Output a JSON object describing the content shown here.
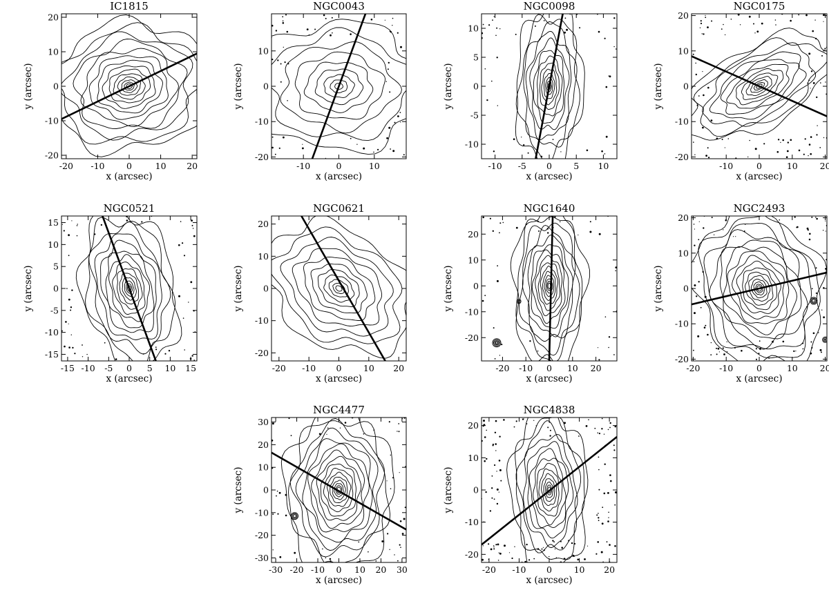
{
  "figure": {
    "x_label": "x (arcsec)",
    "y_label": "y (arcsec)"
  },
  "panels": [
    {
      "id": "ic1815",
      "title": "IC1815",
      "xlim": [
        -21.5,
        21.5
      ],
      "ylim": [
        -21,
        21
      ],
      "xticks": [
        -20,
        -10,
        0,
        10,
        20
      ],
      "yticks": [
        -20,
        -10,
        0,
        10,
        20
      ],
      "pa_line": [
        [
          -21.5,
          -9.5
        ],
        [
          21.5,
          9.5
        ]
      ],
      "isophote_axis_ratio": 0.8,
      "isophote_angle_deg": 10,
      "isophote_count": 14,
      "noise": 0
    },
    {
      "id": "ngc0043",
      "title": "NGC0043",
      "xlim": [
        -19,
        19
      ],
      "ylim": [
        -20.5,
        20.5
      ],
      "xticks": [
        -10,
        0,
        10
      ],
      "yticks": [
        -20,
        -10,
        0,
        10
      ],
      "pa_line": [
        [
          -7.5,
          -20.5
        ],
        [
          7.5,
          20.5
        ]
      ],
      "isophote_axis_ratio": 0.75,
      "isophote_angle_deg": 0,
      "isophote_count": 9,
      "noise": 60
    },
    {
      "id": "ngc0098",
      "title": "NGC0098",
      "xlim": [
        -12.5,
        12.5
      ],
      "ylim": [
        -12.5,
        12.5
      ],
      "xticks": [
        -10,
        -5,
        0,
        5,
        10
      ],
      "yticks": [
        -10,
        -5,
        0,
        5,
        10
      ],
      "pa_line": [
        [
          -2.5,
          -12.5
        ],
        [
          2.5,
          12.5
        ]
      ],
      "isophote_axis_ratio": 0.42,
      "isophote_angle_deg": 88,
      "isophote_count": 13,
      "noise": 45
    },
    {
      "id": "ngc0175",
      "title": "NGC0175",
      "xlim": [
        -20.5,
        20.5
      ],
      "ylim": [
        -20.5,
        20.5
      ],
      "xticks": [
        -10,
        0,
        10,
        20
      ],
      "yticks": [
        -20,
        -10,
        0,
        10,
        20
      ],
      "pa_line": [
        [
          -20.5,
          8.5
        ],
        [
          20.5,
          -8.5
        ]
      ],
      "isophote_axis_ratio": 0.5,
      "isophote_angle_deg": 30,
      "isophote_count": 12,
      "noise": 90
    },
    {
      "id": "ngc0521",
      "title": "NGC0521",
      "xlim": [
        -16.5,
        16.5
      ],
      "ylim": [
        -16.5,
        16.5
      ],
      "xticks": [
        -15,
        -10,
        -5,
        0,
        5,
        10,
        15
      ],
      "yticks": [
        -15,
        -10,
        -5,
        0,
        5,
        10,
        15
      ],
      "pa_line": [
        [
          -6.5,
          16.5
        ],
        [
          6.5,
          -16.5
        ]
      ],
      "isophote_axis_ratio": 0.58,
      "isophote_angle_deg": 102,
      "isophote_count": 14,
      "noise": 55
    },
    {
      "id": "ngc0621",
      "title": "NGC0621",
      "xlim": [
        -22.5,
        22.5
      ],
      "ylim": [
        -22.5,
        22.5
      ],
      "xticks": [
        -20,
        -10,
        0,
        10,
        20
      ],
      "yticks": [
        -20,
        -10,
        0,
        10,
        20
      ],
      "pa_line": [
        [
          -12.5,
          22.5
        ],
        [
          15.5,
          -22.5
        ]
      ],
      "isophote_axis_ratio": 0.72,
      "isophote_angle_deg": 145,
      "isophote_count": 11,
      "noise": 0
    },
    {
      "id": "ngc1640",
      "title": "NGC1640",
      "xlim": [
        -29,
        29
      ],
      "ylim": [
        -29,
        27
      ],
      "xticks": [
        -20,
        -10,
        0,
        10,
        20
      ],
      "yticks": [
        -20,
        -10,
        0,
        10,
        20
      ],
      "pa_line": [
        [
          0,
          -29
        ],
        [
          1.5,
          27
        ]
      ],
      "isophote_axis_ratio": 0.45,
      "isophote_angle_deg": 90,
      "isophote_count": 15,
      "noise": 40
    },
    {
      "id": "ngc2493",
      "title": "NGC2493",
      "xlim": [
        -20.5,
        20.5
      ],
      "ylim": [
        -20.5,
        20.5
      ],
      "xticks": [
        -20,
        -10,
        0,
        10,
        20
      ],
      "yticks": [
        -20,
        -10,
        0,
        10,
        20
      ],
      "pa_line": [
        [
          -20.5,
          -4.5
        ],
        [
          20.5,
          4.5
        ]
      ],
      "isophote_axis_ratio": 0.78,
      "isophote_angle_deg": 110,
      "isophote_count": 16,
      "noise": 85
    },
    {
      "id": "ngc4477",
      "title": "NGC4477",
      "xlim": [
        -32,
        32
      ],
      "ylim": [
        -32,
        32
      ],
      "xticks": [
        -30,
        -20,
        -10,
        0,
        10,
        20,
        30
      ],
      "yticks": [
        -30,
        -20,
        -10,
        0,
        10,
        20,
        30
      ],
      "pa_line": [
        [
          -32,
          16.5
        ],
        [
          32,
          -17.5
        ]
      ],
      "isophote_axis_ratio": 0.68,
      "isophote_angle_deg": 90,
      "isophote_count": 16,
      "noise": 55
    },
    {
      "id": "ngc4838",
      "title": "NGC4838",
      "xlim": [
        -22.5,
        22.5
      ],
      "ylim": [
        -22.5,
        22.5
      ],
      "xticks": [
        -20,
        -10,
        0,
        10,
        20
      ],
      "yticks": [
        -20,
        -10,
        0,
        10,
        20
      ],
      "pa_line": [
        [
          -22.5,
          -17
        ],
        [
          22.5,
          16.5
        ]
      ],
      "isophote_axis_ratio": 0.48,
      "isophote_angle_deg": 92,
      "isophote_count": 14,
      "noise": 130
    }
  ]
}
